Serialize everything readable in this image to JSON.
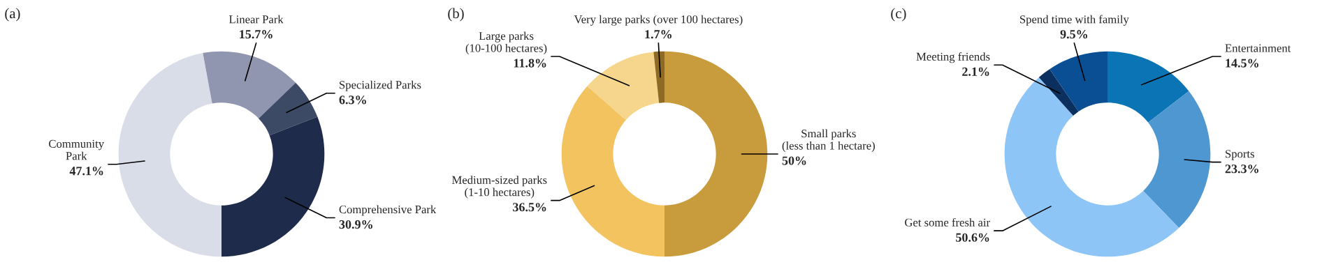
{
  "chart_data": [
    {
      "type": "donut",
      "title": "(a)",
      "categories": [
        "Community\nPark",
        "Linear Park",
        "Specialized Parks",
        "Comprehensive Park"
      ],
      "values": [
        47.1,
        15.7,
        6.3,
        30.9
      ],
      "value_labels": [
        "47.1%",
        "15.7%",
        "6.3%",
        "30.9%"
      ],
      "colors": [
        "#d9dde8",
        "#9196b0",
        "#3d4a66",
        "#1e2b4a"
      ]
    },
    {
      "type": "donut",
      "title": "(b)",
      "categories": [
        "Small parks\n(less than 1 hectare)",
        "Medium-sized parks\n(1-10 hectares)",
        "Large parks\n(10-100 hectares)",
        "Very large parks (over 100 hectares)"
      ],
      "values": [
        50,
        36.5,
        11.8,
        1.7
      ],
      "value_labels": [
        "50%",
        "36.5%",
        "11.8%",
        "1.7%"
      ],
      "colors": [
        "#c89b3c",
        "#f3c35f",
        "#f5d68c",
        "#8f6a25"
      ]
    },
    {
      "type": "donut",
      "title": "(c)",
      "categories": [
        "Entertainment",
        "Sports",
        "Get some fresh air",
        "Meeting friends",
        "Spend time with family"
      ],
      "values": [
        14.5,
        23.3,
        50.6,
        2.1,
        9.5
      ],
      "value_labels": [
        "14.5%",
        "23.3%",
        "50.6%",
        "2.1%",
        "9.5%"
      ],
      "colors": [
        "#0b74b5",
        "#4f97d0",
        "#8ec5f7",
        "#0b2f5e",
        "#0a4f94"
      ]
    }
  ]
}
